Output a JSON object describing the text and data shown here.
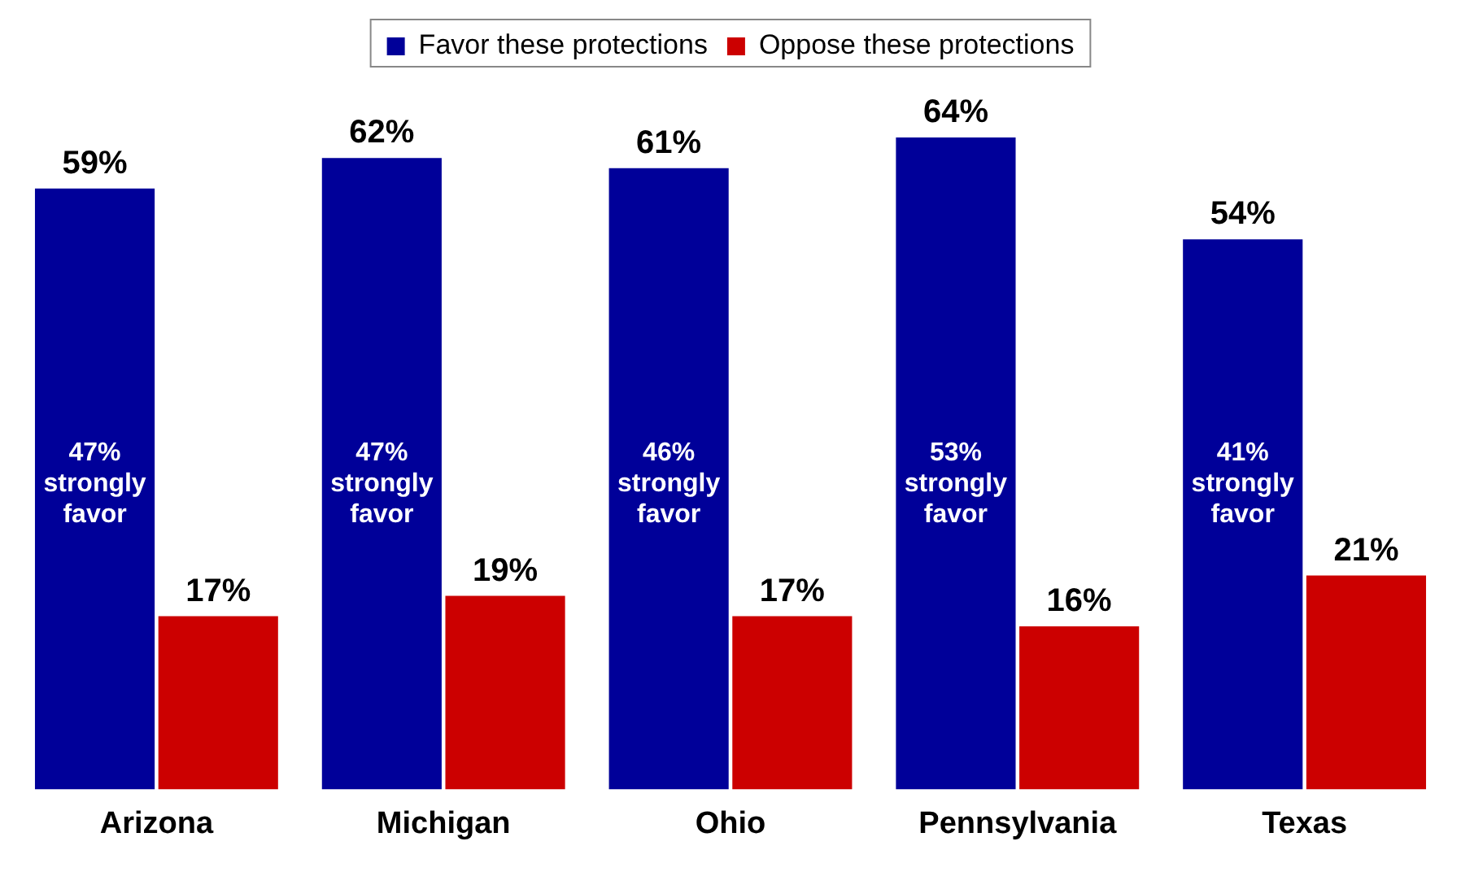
{
  "chart_data": {
    "type": "bar",
    "categories": [
      "Arizona",
      "Michigan",
      "Ohio",
      "Pennsylvania",
      "Texas"
    ],
    "series": [
      {
        "name": "Favor these protections",
        "color": "#000099",
        "values": [
          59,
          62,
          61,
          64,
          54
        ],
        "value_labels": [
          "59%",
          "62%",
          "61%",
          "64%",
          "54%"
        ]
      },
      {
        "name": "Oppose these protections",
        "color": "#cc0000",
        "values": [
          17,
          19,
          17,
          16,
          21
        ],
        "value_labels": [
          "17%",
          "19%",
          "17%",
          "16%",
          "21%"
        ]
      }
    ],
    "annotations": [
      {
        "text": "47% strongly favor",
        "x": "Arizona",
        "y": 30
      },
      {
        "text": "47% strongly favor",
        "x": "Michigan",
        "y": 30
      },
      {
        "text": "46% strongly favor",
        "x": "Ohio",
        "y": 30
      },
      {
        "text": "53% strongly favor",
        "x": "Pennsylvania",
        "y": 30
      },
      {
        "text": "41% strongly favor",
        "x": "Texas",
        "y": 30
      }
    ],
    "legend": "top",
    "grid": false,
    "tick_labels": "x"
  }
}
